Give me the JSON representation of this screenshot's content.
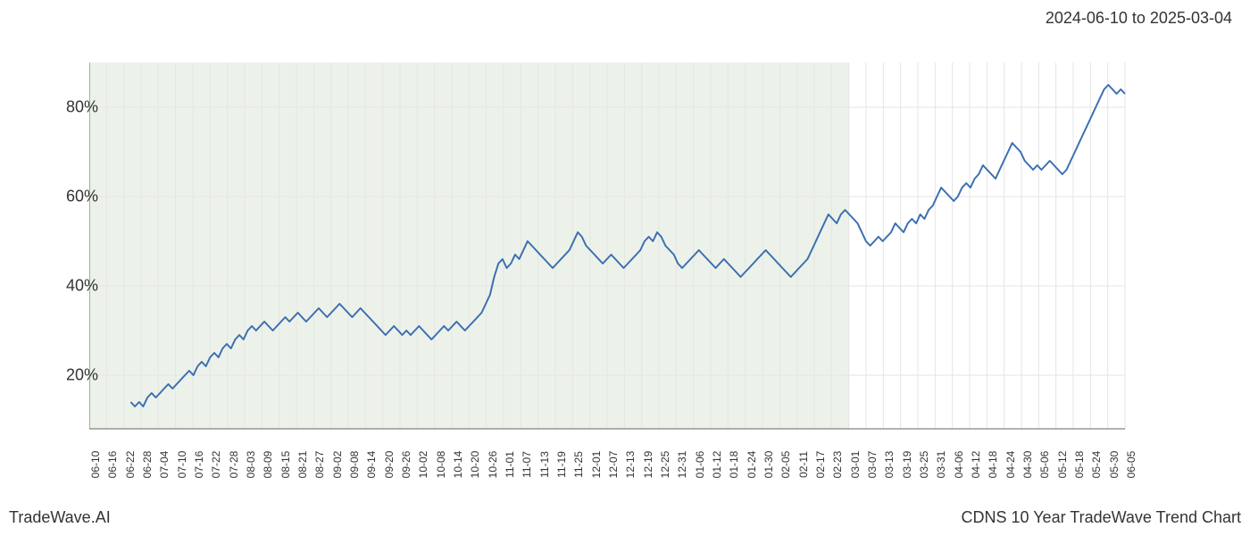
{
  "header": {
    "date_range": "2024-06-10 to 2025-03-04"
  },
  "footer": {
    "left": "TradeWave.AI",
    "right": "CDNS 10 Year TradeWave Trend Chart"
  },
  "chart": {
    "type": "line",
    "background_color": "#ffffff",
    "plot_border_color": "#666666",
    "grid_color": "#e5e5e5",
    "line_color": "#3c6fb0",
    "line_width": 2,
    "shaded_region_color": "#dfe9dc",
    "shaded_region_opacity": 0.6,
    "ylim": [
      8,
      90
    ],
    "ytick_values": [
      20,
      40,
      60,
      80
    ],
    "ytick_labels": [
      "20%",
      "40%",
      "60%",
      "80%"
    ],
    "y_label_fontsize": 18,
    "x_label_fontsize": 12,
    "xtick_labels": [
      "06-10",
      "06-16",
      "06-22",
      "06-28",
      "07-04",
      "07-10",
      "07-16",
      "07-22",
      "07-28",
      "08-03",
      "08-09",
      "08-15",
      "08-21",
      "08-27",
      "09-02",
      "09-08",
      "09-14",
      "09-20",
      "09-26",
      "10-02",
      "10-08",
      "10-14",
      "10-20",
      "10-26",
      "11-01",
      "11-07",
      "11-13",
      "11-19",
      "11-25",
      "12-01",
      "12-07",
      "12-13",
      "12-19",
      "12-25",
      "12-31",
      "01-06",
      "01-12",
      "01-18",
      "01-24",
      "01-30",
      "02-05",
      "02-11",
      "02-17",
      "02-23",
      "03-01",
      "03-07",
      "03-13",
      "03-19",
      "03-25",
      "03-31",
      "04-06",
      "04-12",
      "04-18",
      "04-24",
      "04-30",
      "05-06",
      "05-12",
      "05-18",
      "05-24",
      "05-30",
      "06-05"
    ],
    "shaded_region_start_index": 0,
    "shaded_region_end_index": 44,
    "data_start_offset": 0.04,
    "data": [
      14,
      13,
      14,
      13,
      15,
      16,
      15,
      16,
      17,
      18,
      17,
      18,
      19,
      20,
      21,
      20,
      22,
      23,
      22,
      24,
      25,
      24,
      26,
      27,
      26,
      28,
      29,
      28,
      30,
      31,
      30,
      31,
      32,
      31,
      30,
      31,
      32,
      33,
      32,
      33,
      34,
      33,
      32,
      33,
      34,
      35,
      34,
      33,
      34,
      35,
      36,
      35,
      34,
      33,
      34,
      35,
      34,
      33,
      32,
      31,
      30,
      29,
      30,
      31,
      30,
      29,
      30,
      29,
      30,
      31,
      30,
      29,
      28,
      29,
      30,
      31,
      30,
      31,
      32,
      31,
      30,
      31,
      32,
      33,
      34,
      36,
      38,
      42,
      45,
      46,
      44,
      45,
      47,
      46,
      48,
      50,
      49,
      48,
      47,
      46,
      45,
      44,
      45,
      46,
      47,
      48,
      50,
      52,
      51,
      49,
      48,
      47,
      46,
      45,
      46,
      47,
      46,
      45,
      44,
      45,
      46,
      47,
      48,
      50,
      51,
      50,
      52,
      51,
      49,
      48,
      47,
      45,
      44,
      45,
      46,
      47,
      48,
      47,
      46,
      45,
      44,
      45,
      46,
      45,
      44,
      43,
      42,
      43,
      44,
      45,
      46,
      47,
      48,
      47,
      46,
      45,
      44,
      43,
      42,
      43,
      44,
      45,
      46,
      48,
      50,
      52,
      54,
      56,
      55,
      54,
      56,
      57,
      56,
      55,
      54,
      52,
      50,
      49,
      50,
      51,
      50,
      51,
      52,
      54,
      53,
      52,
      54,
      55,
      54,
      56,
      55,
      57,
      58,
      60,
      62,
      61,
      60,
      59,
      60,
      62,
      63,
      62,
      64,
      65,
      67,
      66,
      65,
      64,
      66,
      68,
      70,
      72,
      71,
      70,
      68,
      67,
      66,
      67,
      66,
      67,
      68,
      67,
      66,
      65,
      66,
      68,
      70,
      72,
      74,
      76,
      78,
      80,
      82,
      84,
      85,
      84,
      83,
      84,
      83
    ]
  }
}
